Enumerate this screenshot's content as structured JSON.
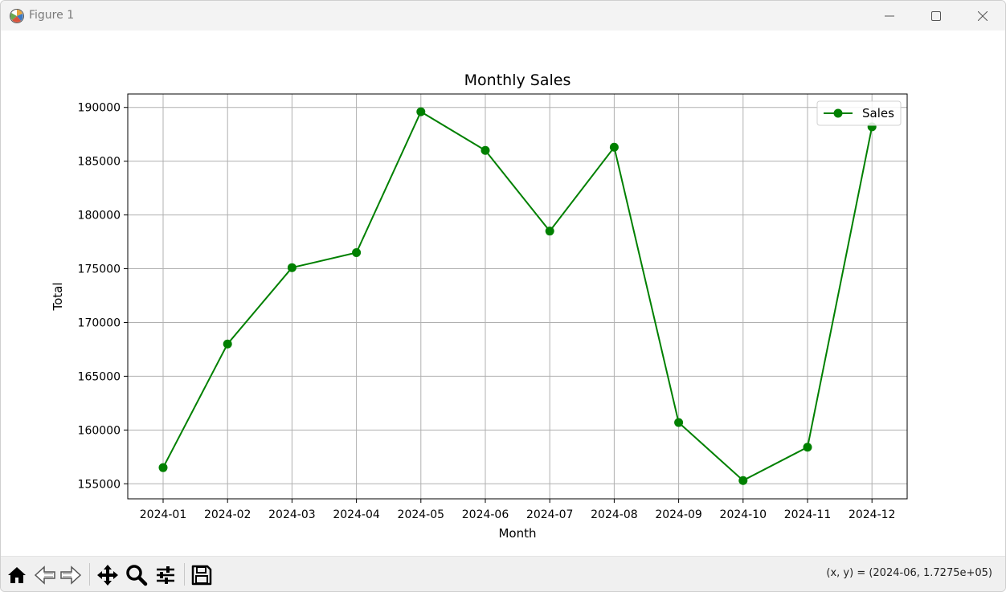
{
  "window": {
    "title": "Figure 1",
    "icons": [
      "matplotlib-logo-icon",
      "minimize-icon",
      "maximize-icon",
      "close-icon"
    ]
  },
  "toolbar": {
    "icons": [
      "home-icon",
      "back-arrow-icon",
      "forward-arrow-icon",
      "pan-icon",
      "zoom-icon",
      "configure-subplots-icon",
      "save-icon"
    ],
    "coordinates": "(x, y) = (2024-06, 1.7275e+05)"
  },
  "chart_data": {
    "type": "line",
    "title": "Monthly Sales",
    "xlabel": "Month",
    "ylabel": "Total",
    "categories": [
      "2024-01",
      "2024-02",
      "2024-03",
      "2024-04",
      "2024-05",
      "2024-06",
      "2024-07",
      "2024-08",
      "2024-09",
      "2024-10",
      "2024-11",
      "2024-12"
    ],
    "series": [
      {
        "name": "Sales",
        "color": "#008000",
        "marker": "circle",
        "values": [
          156500,
          168000,
          175100,
          176500,
          189600,
          186000,
          178500,
          186300,
          160700,
          155300,
          158400,
          188200
        ]
      }
    ],
    "yticks": [
      "155000",
      "160000",
      "165000",
      "170000",
      "175000",
      "180000",
      "185000",
      "190000"
    ],
    "ylim": [
      153600,
      191250
    ],
    "grid": true,
    "legend": "top-right"
  }
}
